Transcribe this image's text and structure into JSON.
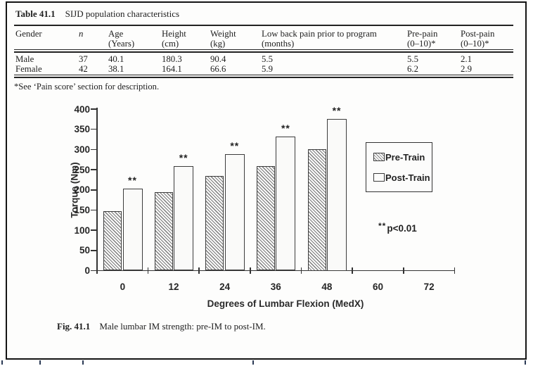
{
  "table": {
    "label": "Table 41.1",
    "title": "SIJD population characteristics",
    "columns": [
      {
        "line1": "Gender",
        "line2": "",
        "italic": false
      },
      {
        "line1": "n",
        "line2": "",
        "italic": true
      },
      {
        "line1": "Age",
        "line2": "(Years)",
        "italic": false
      },
      {
        "line1": "Height",
        "line2": "(cm)",
        "italic": false
      },
      {
        "line1": "Weight",
        "line2": "(kg)",
        "italic": false
      },
      {
        "line1": "Low back pain prior to program",
        "line2": "(months)",
        "italic": false
      },
      {
        "line1": "Pre-pain",
        "line2": "(0–10)*",
        "italic": false
      },
      {
        "line1": "Post-pain",
        "line2": "(0–10)*",
        "italic": false
      }
    ],
    "rows": [
      [
        "Male",
        "37",
        "40.1",
        "180.3",
        "90.4",
        "5.5",
        "5.5",
        "2.1"
      ],
      [
        "Female",
        "42",
        "38.1",
        "164.1",
        "66.6",
        "5.9",
        "6.2",
        "2.9"
      ]
    ],
    "footnote": "*See ‘Pain score’ section for description."
  },
  "figure": {
    "caption_label": "Fig. 41.1",
    "caption_text": "Male lumbar IM strength: pre-IM to post-IM."
  },
  "chart_data": {
    "type": "bar",
    "title": "",
    "xlabel": "Degrees of Lumbar Flexion (MedX)",
    "ylabel": "Torque (Nm)",
    "categories": [
      0,
      12,
      24,
      36,
      48,
      60,
      72
    ],
    "series": [
      {
        "name": "Pre-Train",
        "values": [
          148,
          195,
          234,
          259,
          300,
          null,
          null
        ]
      },
      {
        "name": "Post-Train",
        "values": [
          203,
          259,
          288,
          332,
          375,
          null,
          null
        ]
      }
    ],
    "ylim": [
      0,
      400
    ],
    "ytick_step": 50,
    "grid": false,
    "legend_position": "right",
    "significance_marker": "**",
    "significance_note": "p<0.01",
    "significance_on": "Post-Train"
  }
}
